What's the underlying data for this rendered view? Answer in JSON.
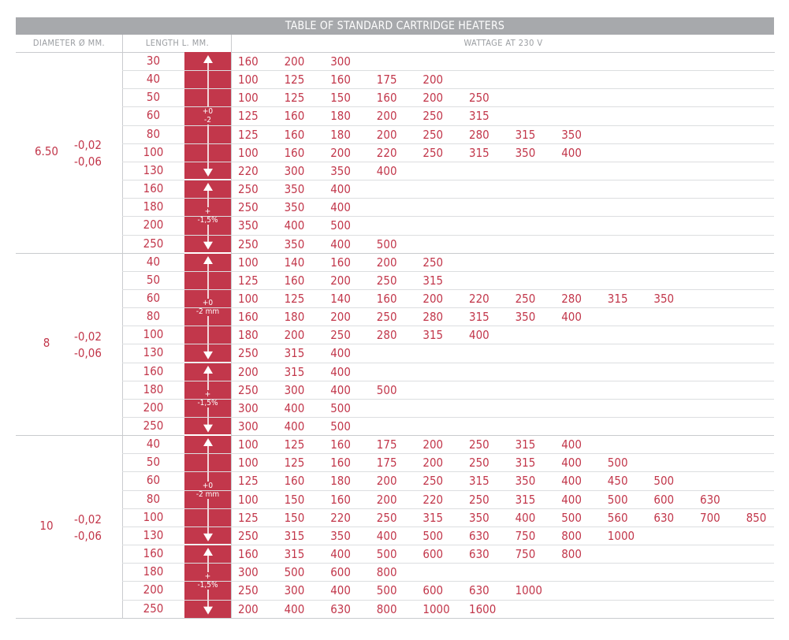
{
  "table": {
    "title": "TABLE OF STANDARD CARTRIDGE HEATERS",
    "headers": {
      "diameter": "DIAMETER Ø MM.",
      "length": "LENGTH L. MM.",
      "wattage": "WATTAGE AT 230 V"
    },
    "colors": {
      "accent": "#c2374b",
      "header_bar": "#a7a9ac",
      "grid": "#c9cbce"
    },
    "groups": [
      {
        "diameter": "6.50",
        "tol_upper": "-0,02",
        "tol_lower": "-0,06",
        "bands": [
          {
            "label_line1": "+0",
            "label_line2": "-2",
            "arrow": "up-down-arrow-icon"
          },
          {
            "label_line1": "+",
            "label_line2": "-1,5%",
            "arrow": "up-down-arrow-icon"
          }
        ],
        "rows": [
          {
            "length": "30",
            "watts": [
              "160",
              "200",
              "300"
            ]
          },
          {
            "length": "40",
            "watts": [
              "100",
              "125",
              "160",
              "175",
              "200"
            ]
          },
          {
            "length": "50",
            "watts": [
              "100",
              "125",
              "150",
              "160",
              "200",
              "250"
            ]
          },
          {
            "length": "60",
            "watts": [
              "125",
              "160",
              "180",
              "200",
              "250",
              "315"
            ]
          },
          {
            "length": "80",
            "watts": [
              "125",
              "160",
              "180",
              "200",
              "250",
              "280",
              "315",
              "350"
            ]
          },
          {
            "length": "100",
            "watts": [
              "100",
              "160",
              "200",
              "220",
              "250",
              "315",
              "350",
              "400"
            ]
          },
          {
            "length": "130",
            "watts": [
              "220",
              "300",
              "350",
              "400"
            ]
          },
          {
            "length": "160",
            "watts": [
              "250",
              "350",
              "400"
            ]
          },
          {
            "length": "180",
            "watts": [
              "250",
              "350",
              "400"
            ]
          },
          {
            "length": "200",
            "watts": [
              "350",
              "400",
              "500"
            ]
          },
          {
            "length": "250",
            "watts": [
              "250",
              "350",
              "400",
              "500"
            ]
          }
        ]
      },
      {
        "diameter": "8",
        "tol_upper": "-0,02",
        "tol_lower": "-0,06",
        "bands": [
          {
            "label_line1": "+0",
            "label_line2": "-2 mm",
            "arrow": "up-down-arrow-icon"
          },
          {
            "label_line1": "+",
            "label_line2": "-1,5%",
            "arrow": "up-down-arrow-icon"
          }
        ],
        "rows": [
          {
            "length": "40",
            "watts": [
              "100",
              "140",
              "160",
              "200",
              "250"
            ]
          },
          {
            "length": "50",
            "watts": [
              "125",
              "160",
              "200",
              "250",
              "315"
            ]
          },
          {
            "length": "60",
            "watts": [
              "100",
              "125",
              "140",
              "160",
              "200",
              "220",
              "250",
              "280",
              "315",
              "350"
            ]
          },
          {
            "length": "80",
            "watts": [
              "160",
              "180",
              "200",
              "250",
              "280",
              "315",
              "350",
              "400"
            ]
          },
          {
            "length": "100",
            "watts": [
              "180",
              "200",
              "250",
              "280",
              "315",
              "400"
            ]
          },
          {
            "length": "130",
            "watts": [
              "250",
              "315",
              "400"
            ]
          },
          {
            "length": "160",
            "watts": [
              "200",
              "315",
              "400"
            ]
          },
          {
            "length": "180",
            "watts": [
              "250",
              "300",
              "400",
              "500"
            ]
          },
          {
            "length": "200",
            "watts": [
              "300",
              "400",
              "500"
            ]
          },
          {
            "length": "250",
            "watts": [
              "300",
              "400",
              "500"
            ]
          }
        ]
      },
      {
        "diameter": "10",
        "tol_upper": "-0,02",
        "tol_lower": "-0,06",
        "bands": [
          {
            "label_line1": "+0",
            "label_line2": "-2 mm",
            "arrow": "up-down-arrow-icon"
          },
          {
            "label_line1": "+",
            "label_line2": "-1,5%",
            "arrow": "up-down-arrow-icon"
          }
        ],
        "rows": [
          {
            "length": "40",
            "watts": [
              "100",
              "125",
              "160",
              "175",
              "200",
              "250",
              "315",
              "400"
            ]
          },
          {
            "length": "50",
            "watts": [
              "100",
              "125",
              "160",
              "175",
              "200",
              "250",
              "315",
              "400",
              "500"
            ]
          },
          {
            "length": "60",
            "watts": [
              "125",
              "160",
              "180",
              "200",
              "250",
              "315",
              "350",
              "400",
              "450",
              "500"
            ]
          },
          {
            "length": "80",
            "watts": [
              "100",
              "150",
              "160",
              "200",
              "220",
              "250",
              "315",
              "400",
              "500",
              "600",
              "630"
            ]
          },
          {
            "length": "100",
            "watts": [
              "125",
              "150",
              "220",
              "250",
              "315",
              "350",
              "400",
              "500",
              "560",
              "630",
              "700",
              "850"
            ]
          },
          {
            "length": "130",
            "watts": [
              "250",
              "315",
              "350",
              "400",
              "500",
              "630",
              "750",
              "800",
              "1000"
            ]
          },
          {
            "length": "160",
            "watts": [
              "160",
              "315",
              "400",
              "500",
              "600",
              "630",
              "750",
              "800"
            ]
          },
          {
            "length": "180",
            "watts": [
              "300",
              "500",
              "600",
              "800"
            ]
          },
          {
            "length": "200",
            "watts": [
              "250",
              "300",
              "400",
              "500",
              "600",
              "630",
              "1000"
            ]
          },
          {
            "length": "250",
            "watts": [
              "200",
              "400",
              "630",
              "800",
              "1000",
              "1600"
            ]
          }
        ]
      }
    ]
  }
}
